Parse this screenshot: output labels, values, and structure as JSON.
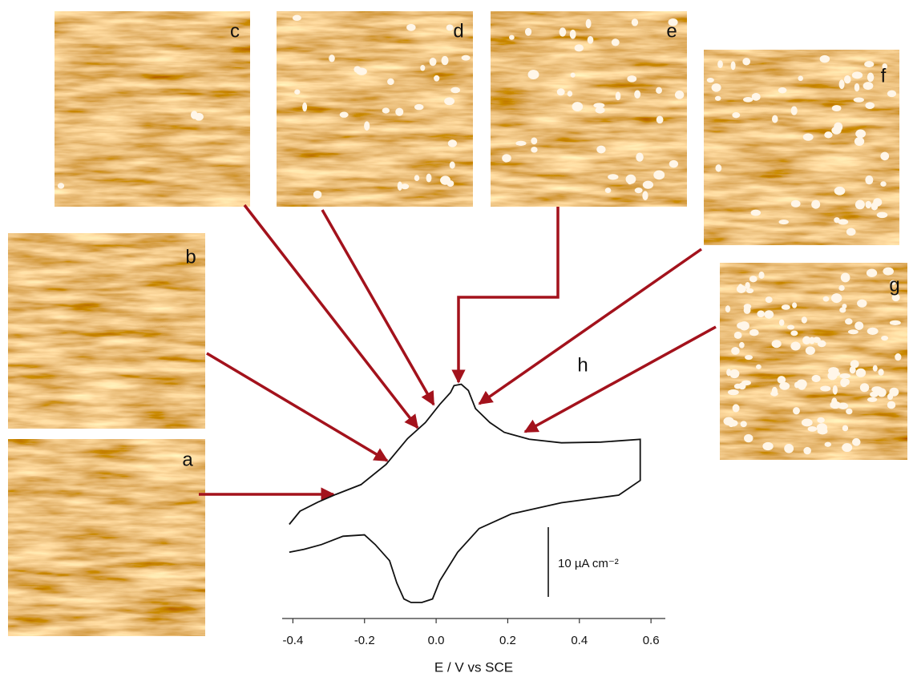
{
  "panels": [
    "a",
    "b",
    "c",
    "d",
    "e",
    "f",
    "g"
  ],
  "chart_data": {
    "type": "line",
    "label": "h",
    "xlabel": "E / V vs SCE",
    "x": [
      -0.41,
      -0.38,
      -0.33,
      -0.28,
      -0.21,
      -0.14,
      -0.08,
      -0.03,
      0.01,
      0.04,
      0.05,
      0.07,
      0.09,
      0.11,
      0.15,
      0.19,
      0.26,
      0.35,
      0.46,
      0.57,
      0.57,
      0.51,
      0.35,
      0.21,
      0.12,
      0.06,
      0.01,
      -0.01,
      -0.04,
      -0.07,
      -0.09,
      -0.11,
      -0.13,
      -0.17,
      -0.2,
      -0.26,
      -0.32,
      -0.37,
      -0.41
    ],
    "values": [
      -4.0,
      -2.1,
      -0.8,
      0.3,
      1.7,
      4.6,
      8.3,
      10.6,
      13.2,
      14.9,
      15.9,
      16.1,
      15.2,
      12.6,
      10.6,
      9.2,
      8.2,
      7.7,
      7.8,
      8.2,
      2.3,
      0.2,
      -0.9,
      -2.5,
      -4.6,
      -8.0,
      -12.1,
      -14.7,
      -15.2,
      -15.2,
      -14.7,
      -12.4,
      -9.2,
      -6.9,
      -5.5,
      -5.7,
      -6.9,
      -7.6,
      -8.0
    ],
    "color": "#111111",
    "xlim": [
      -0.43,
      0.64
    ],
    "xticks": [
      -0.4,
      -0.2,
      {
        "value": 0,
        "label": "0.0"
      },
      0.2,
      0.4,
      0.6
    ],
    "ylim": [
      -17.5,
      17.2
    ],
    "scale_bar": {
      "value": 10,
      "label": "10 µA cm⁻²"
    }
  }
}
